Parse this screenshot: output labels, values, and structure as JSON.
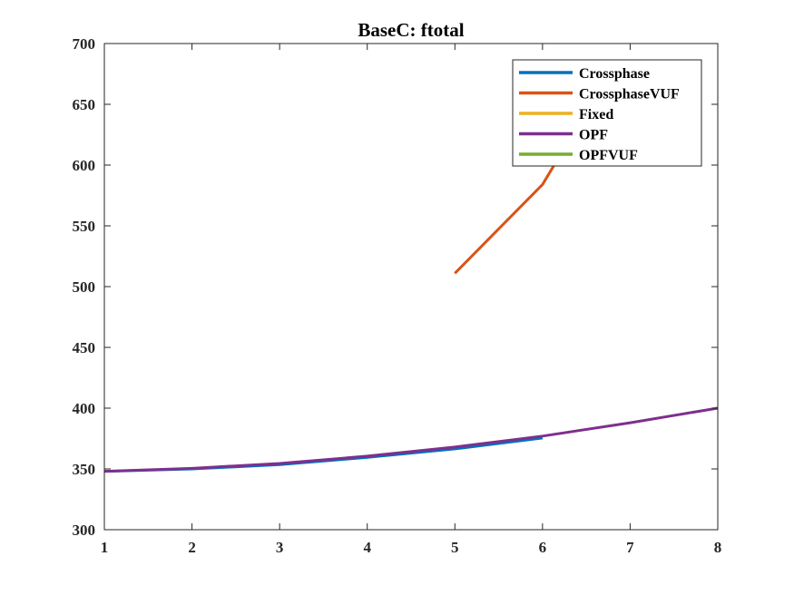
{
  "chart_data": {
    "type": "line",
    "title": "BaseC: ftotal",
    "xlabel": "",
    "ylabel": "",
    "xlim": [
      1,
      8
    ],
    "ylim": [
      300,
      700
    ],
    "xticks": [
      1,
      2,
      3,
      4,
      5,
      6,
      7,
      8
    ],
    "yticks": [
      300,
      350,
      400,
      450,
      500,
      550,
      600,
      650,
      700
    ],
    "grid": false,
    "legend_position": "top-right",
    "series": [
      {
        "name": "Crossphase",
        "color": "#0072BD",
        "x": [
          1,
          2,
          3,
          4,
          5,
          6
        ],
        "y": [
          348,
          350,
          353.5,
          359.5,
          366.5,
          375.5
        ]
      },
      {
        "name": "CrossphaseVUF",
        "color": "#D95319",
        "x": [
          5,
          6,
          6.3
        ],
        "y": [
          511,
          584,
          620
        ]
      },
      {
        "name": "Fixed",
        "color": "#EDB120",
        "x": [],
        "y": []
      },
      {
        "name": "OPF",
        "color": "#7E2F8E",
        "x": [
          1,
          2,
          3,
          4,
          5,
          6,
          7,
          8
        ],
        "y": [
          348,
          350.5,
          354.5,
          360.5,
          368,
          377,
          388,
          400
        ]
      },
      {
        "name": "OPFVUF",
        "color": "#77AC30",
        "x": [],
        "y": []
      }
    ]
  }
}
